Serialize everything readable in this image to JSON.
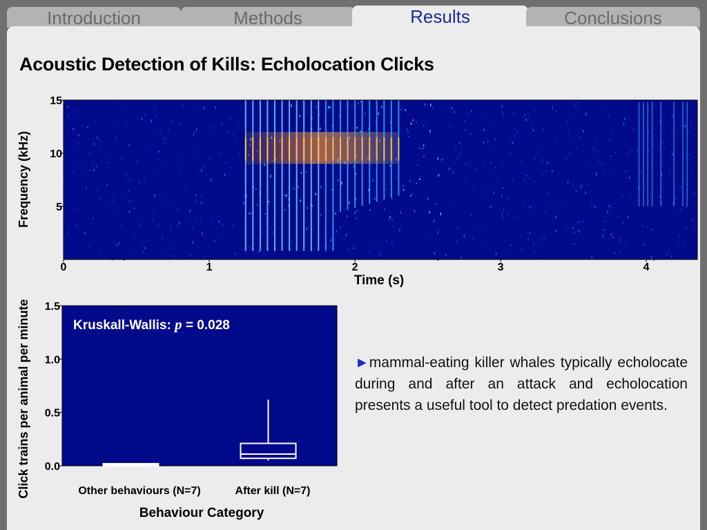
{
  "tabs": [
    {
      "label": "Introduction",
      "active": false
    },
    {
      "label": "Methods",
      "active": false
    },
    {
      "label": "Results",
      "active": true
    },
    {
      "label": "Conclusions",
      "active": false
    }
  ],
  "slide": {
    "title": "Acoustic Detection of Kills: Echolocation Clicks",
    "bullet_marker": "►",
    "bullet_text": "mammal-eating killer whales typically echolocate during and after an attack and echolocation presents a useful tool to detect predation events."
  },
  "colors": {
    "plot_bg": "#020a8c",
    "accent_text": "#1a2a9c",
    "box_line": "#ffffff"
  },
  "chart_data": [
    {
      "type": "heatmap",
      "xlabel": "Time (s)",
      "ylabel": "Frequency (kHz)",
      "xlim": [
        0,
        4.35
      ],
      "ylim": [
        0,
        15
      ],
      "xticks": [
        0,
        1,
        2,
        3,
        4
      ],
      "yticks": [
        5,
        10,
        15
      ],
      "click_train": {
        "start": 1.25,
        "end": 2.3,
        "strongest_band_khz": [
          9,
          12
        ]
      },
      "late_clicks": {
        "start": 3.95,
        "end": 4.35
      }
    },
    {
      "type": "box",
      "annotation_prefix": "Kruskall-Wallis: ",
      "annotation_italic": "p",
      "annotation_suffix": " = 0.028",
      "xlabel": "Behaviour Category",
      "ylabel": "Click trains per animal per minute",
      "ylim": [
        0,
        1.5
      ],
      "yticks": [
        "0.0",
        "0.5",
        "1.0",
        "1.5"
      ],
      "categories": [
        "Other behaviours (N=7)",
        "After kill (N=7)"
      ],
      "boxes": [
        {
          "min": 0.0,
          "q1": 0.0,
          "median": 0.01,
          "q3": 0.02,
          "max": 0.02
        },
        {
          "min": 0.05,
          "q1": 0.07,
          "median": 0.11,
          "q3": 0.21,
          "max": 0.62
        }
      ]
    }
  ]
}
